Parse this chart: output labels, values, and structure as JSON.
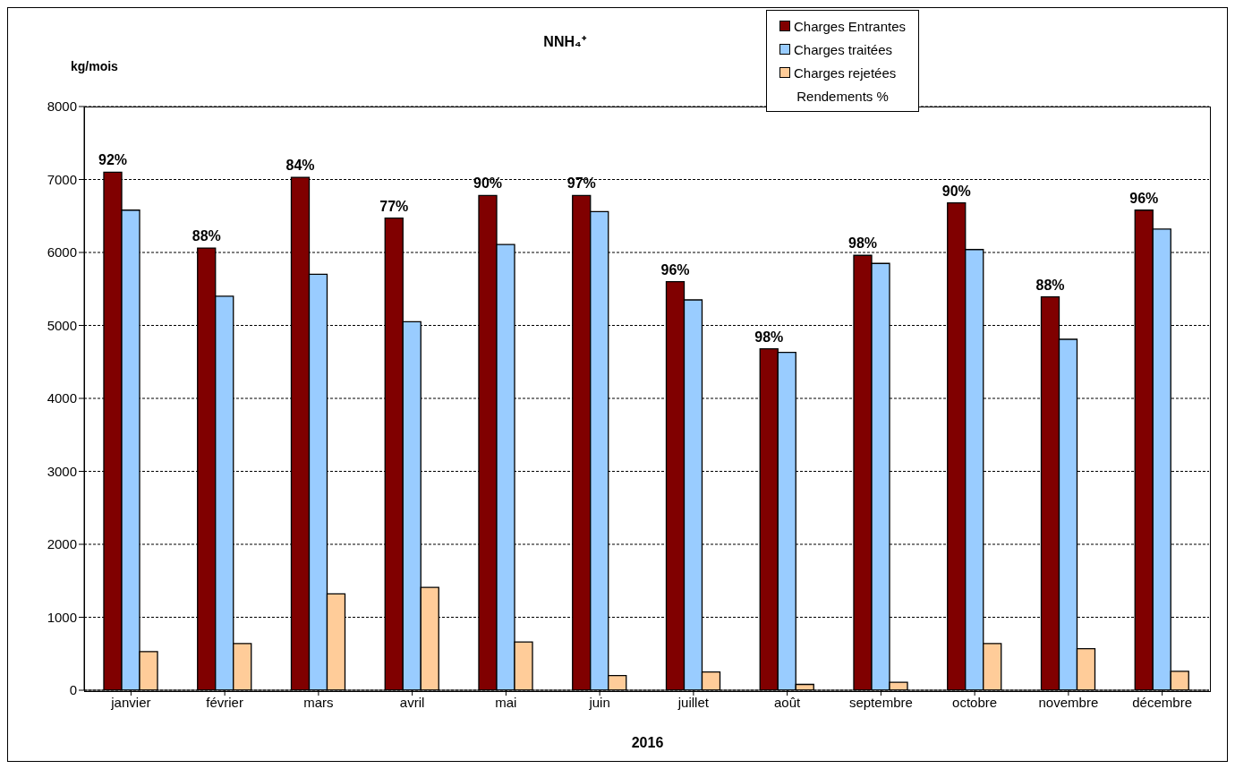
{
  "chart_data": {
    "type": "bar",
    "title": "NNH₄⁺",
    "ylabel": "kg/mois",
    "xlabel": "2016",
    "categories": [
      "janvier",
      "février",
      "mars",
      "avril",
      "mai",
      "juin",
      "juillet",
      "août",
      "septembre",
      "octobre",
      "novembre",
      "décembre"
    ],
    "series": [
      {
        "name": "Charges Entrantes",
        "color": "#800000",
        "values": [
          7100,
          6060,
          7030,
          6470,
          6780,
          6780,
          5600,
          4680,
          5960,
          6680,
          5390,
          6580
        ]
      },
      {
        "name": "Charges traitées",
        "color": "#99ccff",
        "values": [
          6580,
          5400,
          5700,
          5050,
          6110,
          6560,
          5350,
          4630,
          5850,
          6040,
          4810,
          6320
        ]
      },
      {
        "name": "Charges rejetées",
        "color": "#ffcc99",
        "values": [
          530,
          640,
          1320,
          1410,
          660,
          200,
          250,
          80,
          110,
          640,
          570,
          260
        ]
      }
    ],
    "annotations": [
      "Rendements %",
      "92%",
      "88%",
      "84%",
      "77%",
      "90%",
      "97%",
      "96%",
      "98%",
      "98%",
      "90%",
      "88%",
      "96%"
    ],
    "ylim": [
      0,
      8000
    ],
    "yticks": [
      0,
      1000,
      2000,
      3000,
      4000,
      5000,
      6000,
      7000,
      8000
    ],
    "grid": "y",
    "legend": "top right"
  }
}
